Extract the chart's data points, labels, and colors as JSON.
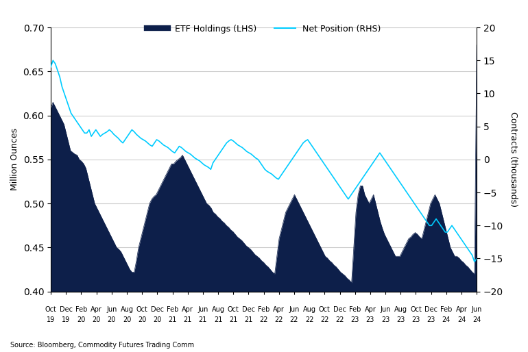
{
  "title": "",
  "legend_etf": "ETF Holdings (LHS)",
  "legend_net": "Net Position (RHS)",
  "ylabel_left": "Million Ounces",
  "ylabel_right": "Contracts (thousands)",
  "source": "Source: Bloomberg, Commodity Futures Trading Comm",
  "lhs_ylim": [
    0.4,
    0.7
  ],
  "rhs_ylim": [
    -20,
    20
  ],
  "lhs_yticks": [
    0.4,
    0.45,
    0.5,
    0.55,
    0.6,
    0.65,
    0.7
  ],
  "rhs_yticks": [
    -20,
    -15,
    -10,
    -5,
    0,
    5,
    10,
    15,
    20
  ],
  "etf_color": "#0d1f4a",
  "net_color": "#00ccff",
  "background_color": "#ffffff",
  "grid_color": "#cccccc",
  "x_tick_labels_row1": [
    "Oct",
    "Dec",
    "Feb",
    "Apr",
    "Jun",
    "Aug",
    "Oct",
    "Dec",
    "Feb",
    "Apr",
    "Jun",
    "Aug",
    "Oct",
    "Dec",
    "Feb",
    "Apr",
    "Jun",
    "Aug",
    "Oct",
    "Dec",
    "Feb",
    "Apr",
    "Jun",
    "Aug",
    "Oct",
    "Dec",
    "Feb",
    "Apr",
    "Jun"
  ],
  "x_tick_labels_row2": [
    "19",
    "19",
    "20",
    "20",
    "20",
    "20",
    "20",
    "20",
    "21",
    "21",
    "21",
    "21",
    "21",
    "21",
    "22",
    "22",
    "22",
    "22",
    "22",
    "22",
    "23",
    "23",
    "23",
    "23",
    "23",
    "23",
    "24",
    "24",
    "24"
  ],
  "etf_data": [
    0.608,
    0.615,
    0.61,
    0.605,
    0.6,
    0.595,
    0.59,
    0.58,
    0.57,
    0.56,
    0.558,
    0.556,
    0.555,
    0.55,
    0.548,
    0.545,
    0.54,
    0.53,
    0.52,
    0.51,
    0.5,
    0.495,
    0.49,
    0.485,
    0.48,
    0.475,
    0.47,
    0.465,
    0.46,
    0.455,
    0.45,
    0.448,
    0.445,
    0.44,
    0.435,
    0.43,
    0.425,
    0.422,
    0.422,
    0.435,
    0.45,
    0.46,
    0.47,
    0.48,
    0.49,
    0.5,
    0.505,
    0.508,
    0.51,
    0.515,
    0.52,
    0.525,
    0.53,
    0.535,
    0.54,
    0.545,
    0.545,
    0.548,
    0.55,
    0.552,
    0.555,
    0.55,
    0.545,
    0.54,
    0.535,
    0.53,
    0.525,
    0.52,
    0.515,
    0.51,
    0.505,
    0.5,
    0.498,
    0.495,
    0.49,
    0.488,
    0.485,
    0.483,
    0.48,
    0.478,
    0.475,
    0.473,
    0.47,
    0.468,
    0.465,
    0.462,
    0.46,
    0.458,
    0.455,
    0.452,
    0.45,
    0.448,
    0.445,
    0.442,
    0.44,
    0.438,
    0.435,
    0.433,
    0.43,
    0.428,
    0.425,
    0.422,
    0.42,
    0.44,
    0.46,
    0.47,
    0.48,
    0.49,
    0.495,
    0.5,
    0.505,
    0.51,
    0.505,
    0.5,
    0.495,
    0.49,
    0.485,
    0.48,
    0.475,
    0.47,
    0.465,
    0.46,
    0.455,
    0.45,
    0.445,
    0.44,
    0.438,
    0.435,
    0.433,
    0.43,
    0.428,
    0.425,
    0.422,
    0.42,
    0.418,
    0.415,
    0.413,
    0.41,
    0.45,
    0.49,
    0.51,
    0.52,
    0.52,
    0.51,
    0.505,
    0.5,
    0.505,
    0.51,
    0.5,
    0.49,
    0.48,
    0.472,
    0.465,
    0.46,
    0.455,
    0.45,
    0.445,
    0.44,
    0.44,
    0.44,
    0.445,
    0.45,
    0.455,
    0.46,
    0.462,
    0.465,
    0.467,
    0.465,
    0.462,
    0.46,
    0.47,
    0.48,
    0.49,
    0.5,
    0.505,
    0.51,
    0.505,
    0.5,
    0.49,
    0.48,
    0.47,
    0.46,
    0.45,
    0.445,
    0.44,
    0.44,
    0.438,
    0.435,
    0.433,
    0.43,
    0.428,
    0.425,
    0.422,
    0.42,
    0.68
  ],
  "net_data": [
    14.0,
    15.0,
    14.5,
    13.5,
    12.5,
    11.0,
    10.0,
    9.0,
    8.0,
    7.0,
    6.5,
    6.0,
    5.5,
    5.0,
    4.5,
    4.0,
    4.0,
    4.5,
    3.5,
    4.0,
    4.5,
    4.0,
    3.5,
    3.8,
    4.0,
    4.2,
    4.5,
    4.2,
    3.8,
    3.5,
    3.2,
    2.8,
    2.5,
    3.0,
    3.5,
    4.0,
    4.5,
    4.2,
    3.8,
    3.5,
    3.2,
    3.0,
    2.8,
    2.5,
    2.2,
    2.0,
    2.5,
    3.0,
    2.8,
    2.5,
    2.2,
    2.0,
    1.8,
    1.5,
    1.2,
    1.0,
    1.5,
    2.0,
    1.8,
    1.5,
    1.2,
    1.0,
    0.8,
    0.5,
    0.2,
    0.0,
    -0.2,
    -0.5,
    -0.8,
    -1.0,
    -1.2,
    -1.5,
    -0.5,
    0.0,
    0.5,
    1.0,
    1.5,
    2.0,
    2.5,
    2.8,
    3.0,
    2.8,
    2.5,
    2.2,
    2.0,
    1.8,
    1.5,
    1.2,
    1.0,
    0.8,
    0.5,
    0.2,
    0.0,
    -0.5,
    -1.0,
    -1.5,
    -1.8,
    -2.0,
    -2.2,
    -2.5,
    -2.8,
    -3.0,
    -2.5,
    -2.0,
    -1.5,
    -1.0,
    -0.5,
    0.0,
    0.5,
    1.0,
    1.5,
    2.0,
    2.5,
    2.8,
    3.0,
    2.5,
    2.0,
    1.5,
    1.0,
    0.5,
    0.0,
    -0.5,
    -1.0,
    -1.5,
    -2.0,
    -2.5,
    -3.0,
    -3.5,
    -4.0,
    -4.5,
    -5.0,
    -5.5,
    -6.0,
    -5.5,
    -5.0,
    -4.5,
    -4.0,
    -3.5,
    -3.0,
    -2.5,
    -2.0,
    -1.5,
    -1.0,
    -0.5,
    0.0,
    0.5,
    1.0,
    0.5,
    0.0,
    -0.5,
    -1.0,
    -1.5,
    -2.0,
    -2.5,
    -3.0,
    -3.5,
    -4.0,
    -4.5,
    -5.0,
    -5.5,
    -6.0,
    -6.5,
    -7.0,
    -7.5,
    -8.0,
    -8.5,
    -9.0,
    -9.5,
    -10.0,
    -10.0,
    -9.5,
    -9.0,
    -9.5,
    -10.0,
    -10.5,
    -11.0,
    -11.0,
    -10.5,
    -10.0,
    -10.5,
    -11.0,
    -11.5,
    -12.0,
    -12.5,
    -13.0,
    -13.5,
    -14.0,
    -14.5,
    -15.5,
    -15.0
  ]
}
